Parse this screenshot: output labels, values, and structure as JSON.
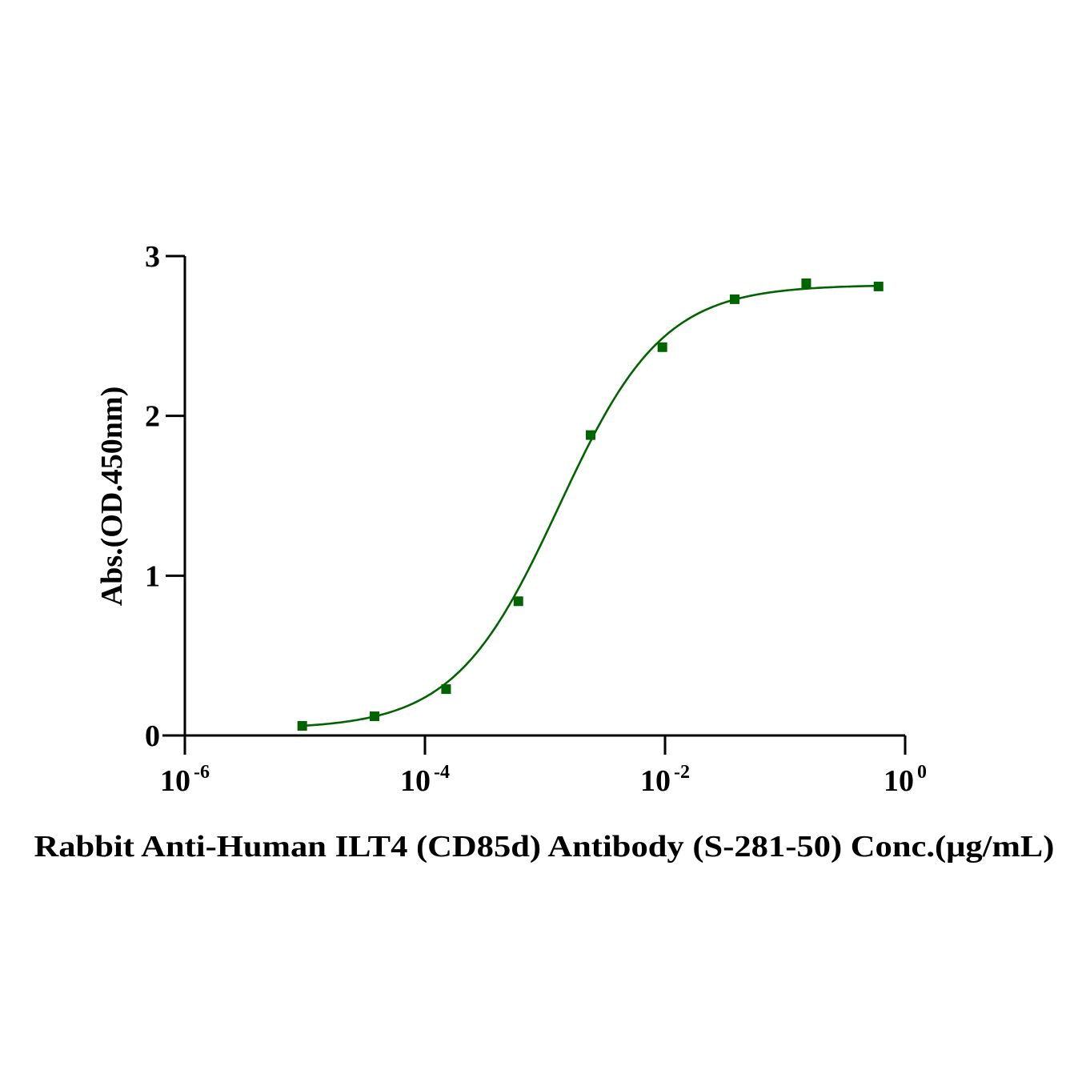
{
  "chart_data": {
    "type": "scatter",
    "title": "",
    "xlabel": "Rabbit Anti-Human ILT4 (CD85d) Antibody (S-281-50)  Conc.(μg/mL)",
    "ylabel": "Abs.(OD.450nm)",
    "x_scale": "log",
    "xlim": [
      1e-06,
      1
    ],
    "ylim": [
      0,
      3
    ],
    "x_ticks": [
      {
        "value": 1e-06,
        "base": "10",
        "exp": "-6"
      },
      {
        "value": 0.0001,
        "base": "10",
        "exp": "-4"
      },
      {
        "value": 0.01,
        "base": "10",
        "exp": "-2"
      },
      {
        "value": 1,
        "base": "10",
        "exp": "0"
      }
    ],
    "y_ticks": [
      0,
      1,
      2,
      3
    ],
    "grid": false,
    "color": "#006400",
    "series": [
      {
        "marker": "square",
        "x": [
          9.5e-06,
          3.8e-05,
          0.00015,
          0.0006,
          0.0024,
          0.0095,
          0.038,
          0.15,
          0.6
        ],
        "y": [
          0.06,
          0.12,
          0.29,
          0.84,
          1.88,
          2.43,
          2.73,
          2.83,
          2.81
        ]
      }
    ],
    "fit": {
      "type": "4PL",
      "bottom": 0.04,
      "top": 2.82,
      "ec50": 0.0013,
      "hill": 1.0
    }
  }
}
